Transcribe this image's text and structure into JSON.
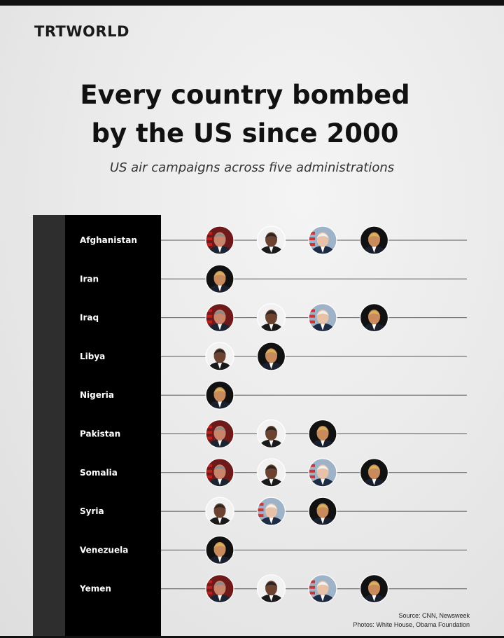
{
  "brand": {
    "logo": "TRTWORLD"
  },
  "header": {
    "title_line1": "Every country bombed",
    "title_line2": "by the US since 2000",
    "subtitle": "US air campaigns across five administrations"
  },
  "footer": {
    "source": "Source: CNN, Newsweek",
    "photos": "Photos: White House, Obama Foundation"
  },
  "portraits": {
    "bush": {
      "skin": "#c9846a",
      "hair": "#8a8a8a",
      "bg": "#6e1a1a",
      "suit": "#1b2433"
    },
    "obama": {
      "skin": "#6b4330",
      "hair": "#2a2522",
      "bg": "#f2f2f2",
      "suit": "#1a1a1a"
    },
    "biden": {
      "skin": "#e8c2a8",
      "hair": "#f0f0f0",
      "bg": "#9fb3c8",
      "suit": "#1e2b45"
    },
    "trump": {
      "skin": "#c98a5c",
      "hair": "#d8b25a",
      "bg": "#111111",
      "suit": "#1a1f2e"
    }
  },
  "chart_data": {
    "type": "table",
    "categories": [
      "Afghanistan",
      "Iran",
      "Iraq",
      "Libya",
      "Nigeria",
      "Pakistan",
      "Somalia",
      "Syria",
      "Venezuela",
      "Yemen"
    ],
    "rows": [
      {
        "country": "Afghanistan",
        "presidents": [
          "bush",
          "obama",
          "biden",
          "trump"
        ]
      },
      {
        "country": "Iran",
        "presidents": [
          "trump"
        ]
      },
      {
        "country": "Iraq",
        "presidents": [
          "bush",
          "obama",
          "biden",
          "trump"
        ]
      },
      {
        "country": "Libya",
        "presidents": [
          "obama",
          "trump"
        ]
      },
      {
        "country": "Nigeria",
        "presidents": [
          "trump"
        ]
      },
      {
        "country": "Pakistan",
        "presidents": [
          "bush",
          "obama",
          "trump"
        ]
      },
      {
        "country": "Somalia",
        "presidents": [
          "bush",
          "obama",
          "biden",
          "trump"
        ]
      },
      {
        "country": "Syria",
        "presidents": [
          "obama",
          "biden",
          "trump"
        ]
      },
      {
        "country": "Venezuela",
        "presidents": [
          "trump"
        ]
      },
      {
        "country": "Yemen",
        "presidents": [
          "bush",
          "obama",
          "biden",
          "trump"
        ]
      }
    ]
  }
}
